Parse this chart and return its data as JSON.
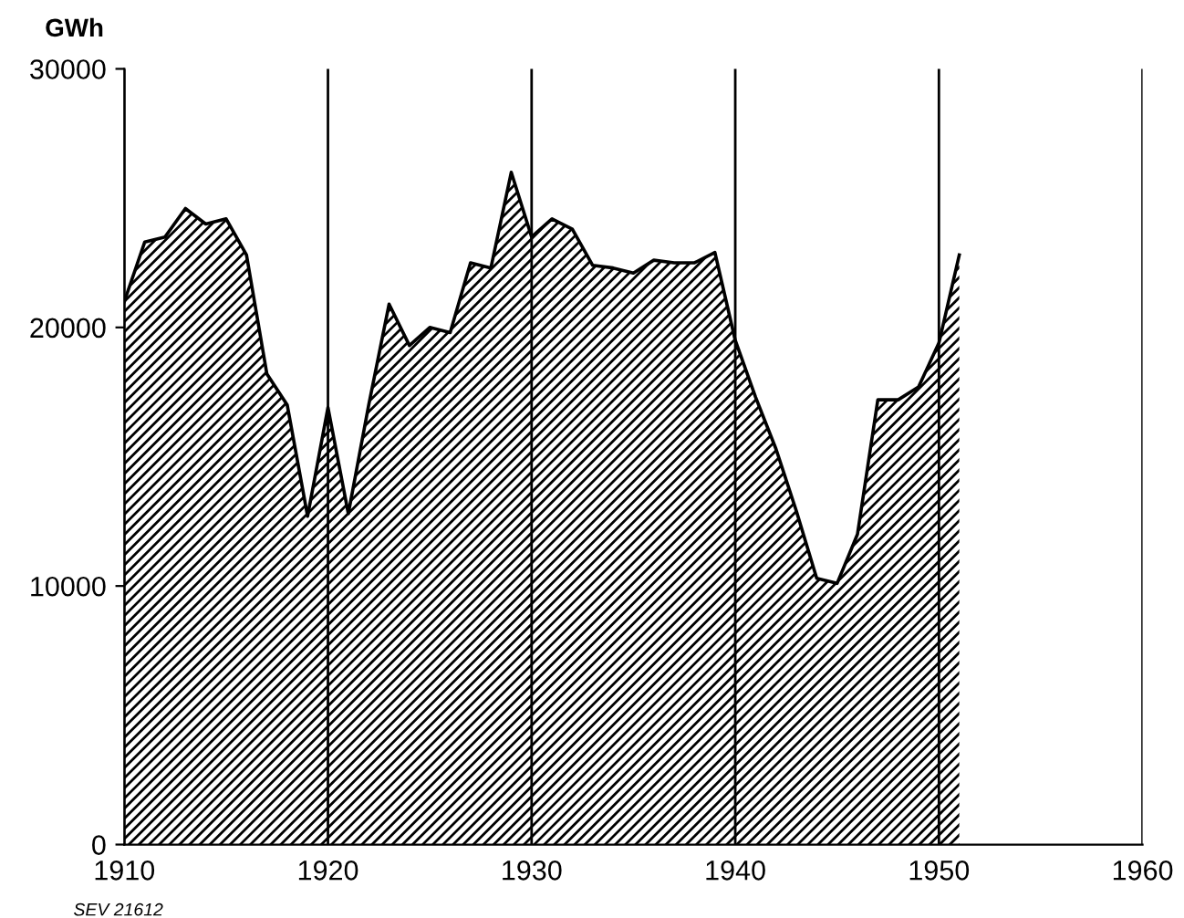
{
  "chart_data": {
    "type": "area",
    "ylabel": "GWh",
    "annotations": [
      "SEV 21612"
    ],
    "x": [
      1910,
      1911,
      1912,
      1913,
      1914,
      1915,
      1916,
      1917,
      1918,
      1919,
      1920,
      1921,
      1922,
      1923,
      1924,
      1925,
      1926,
      1927,
      1928,
      1929,
      1930,
      1931,
      1932,
      1933,
      1934,
      1935,
      1936,
      1937,
      1938,
      1939,
      1940,
      1941,
      1942,
      1943,
      1944,
      1945,
      1946,
      1947,
      1948,
      1949,
      1950,
      1951
    ],
    "series": [
      {
        "color": "#000000",
        "values": [
          21000,
          23300,
          23500,
          24600,
          24000,
          24200,
          22800,
          18200,
          17000,
          12700,
          16900,
          12800,
          17000,
          20900,
          19300,
          20000,
          19800,
          22500,
          22300,
          26000,
          23500,
          24200,
          23800,
          22400,
          22300,
          22100,
          22600,
          22500,
          22500,
          22900,
          19500,
          17300,
          15300,
          12900,
          10300,
          10100,
          12000,
          17200,
          17200,
          17700,
          19400,
          22800
        ]
      }
    ],
    "xlim": [
      1910,
      1960
    ],
    "xticks": [
      1910,
      1920,
      1930,
      1940,
      1950,
      1960
    ],
    "ylim": [
      0,
      30000
    ],
    "yticks": [
      0,
      10000,
      20000,
      30000
    ],
    "grid": "x"
  }
}
